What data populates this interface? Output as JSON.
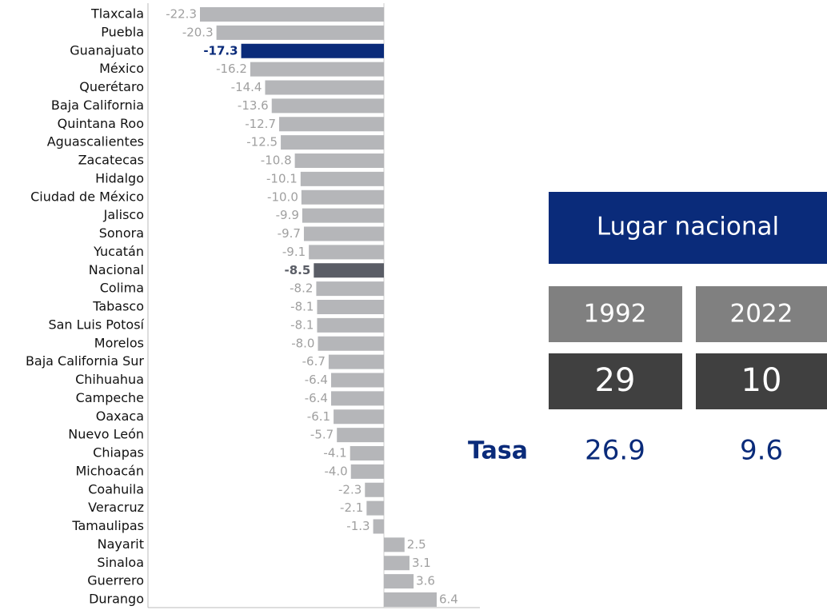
{
  "chart_data": {
    "type": "bar",
    "orientation": "horizontal",
    "categories": [
      "Tlaxcala",
      "Puebla",
      "Guanajuato",
      "México",
      "Querétaro",
      "Baja California",
      "Quintana Roo",
      "Aguascalientes",
      "Zacatecas",
      "Hidalgo",
      "Ciudad de México",
      "Jalisco",
      "Sonora",
      "Yucatán",
      "Nacional",
      "Colima",
      "Tabasco",
      "San Luis Potosí",
      "Morelos",
      "Baja California Sur",
      "Chihuahua",
      "Campeche",
      "Oaxaca",
      "Nuevo León",
      "Chiapas",
      "Michoacán",
      "Coahuila",
      "Veracruz",
      "Tamaulipas",
      "Nayarit",
      "Sinaloa",
      "Guerrero",
      "Durango"
    ],
    "values": [
      -22.3,
      -20.3,
      -17.3,
      -16.2,
      -14.4,
      -13.6,
      -12.7,
      -12.5,
      -10.8,
      -10.1,
      -10.0,
      -9.9,
      -9.7,
      -9.1,
      -8.5,
      -8.2,
      -8.1,
      -8.1,
      -8.0,
      -6.7,
      -6.4,
      -6.4,
      -6.1,
      -5.7,
      -4.1,
      -4.0,
      -2.3,
      -2.1,
      -1.3,
      2.5,
      3.1,
      3.6,
      6.4
    ],
    "value_labels": [
      "-22.3",
      "-20.3",
      "-17.3",
      "-16.2",
      "-14.4",
      "-13.6",
      "-12.7",
      "-12.5",
      "-10.8",
      "-10.1",
      "-10.0",
      "-9.9",
      "-9.7",
      "-9.1",
      "-8.5",
      "-8.2",
      "-8.1",
      "-8.1",
      "-8.0",
      "-6.7",
      "-6.4",
      "-6.4",
      "-6.1",
      "-5.7",
      "-4.1",
      "-4.0",
      "-2.3",
      "-2.1",
      "-1.3",
      "2.5",
      "3.1",
      "3.6",
      "6.4"
    ],
    "color": "#b5b6b9",
    "highlights": {
      "Guanajuato": "#0a2b7a",
      "Nacional": "#5a5d66"
    }
  },
  "panel": {
    "title": "Lugar nacional",
    "years": [
      "1992",
      "2022"
    ],
    "ranks": [
      29,
      10
    ],
    "rate_label": "Tasa",
    "rates": [
      26.9,
      9.6
    ]
  }
}
